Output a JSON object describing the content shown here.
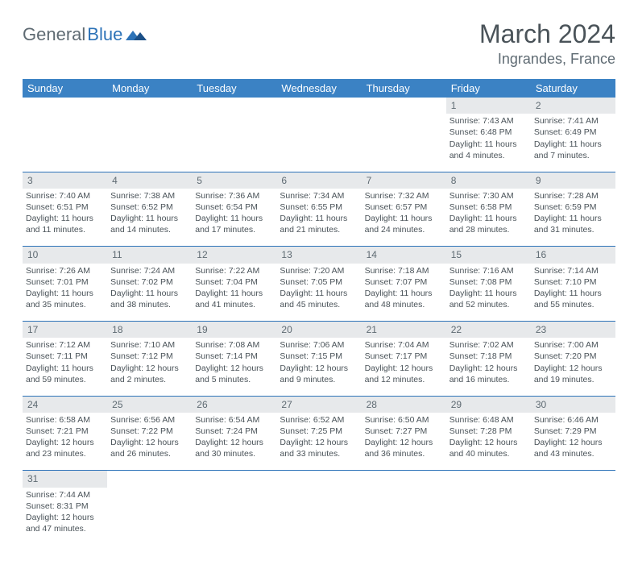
{
  "brand": {
    "part1": "General",
    "part2": "Blue"
  },
  "title": {
    "month": "March 2024",
    "location": "Ingrandes, France"
  },
  "colors": {
    "header_bg": "#3b82c4",
    "header_text": "#ffffff",
    "daynum_bg": "#e7e9eb",
    "border": "#2d73b8",
    "body_text": "#4a5359",
    "logo_gray": "#5f6b73",
    "logo_blue": "#2d73b8"
  },
  "weekdays": [
    "Sunday",
    "Monday",
    "Tuesday",
    "Wednesday",
    "Thursday",
    "Friday",
    "Saturday"
  ],
  "weeks": [
    [
      null,
      null,
      null,
      null,
      null,
      {
        "n": "1",
        "sr": "Sunrise: 7:43 AM",
        "ss": "Sunset: 6:48 PM",
        "d1": "Daylight: 11 hours",
        "d2": "and 4 minutes."
      },
      {
        "n": "2",
        "sr": "Sunrise: 7:41 AM",
        "ss": "Sunset: 6:49 PM",
        "d1": "Daylight: 11 hours",
        "d2": "and 7 minutes."
      }
    ],
    [
      {
        "n": "3",
        "sr": "Sunrise: 7:40 AM",
        "ss": "Sunset: 6:51 PM",
        "d1": "Daylight: 11 hours",
        "d2": "and 11 minutes."
      },
      {
        "n": "4",
        "sr": "Sunrise: 7:38 AM",
        "ss": "Sunset: 6:52 PM",
        "d1": "Daylight: 11 hours",
        "d2": "and 14 minutes."
      },
      {
        "n": "5",
        "sr": "Sunrise: 7:36 AM",
        "ss": "Sunset: 6:54 PM",
        "d1": "Daylight: 11 hours",
        "d2": "and 17 minutes."
      },
      {
        "n": "6",
        "sr": "Sunrise: 7:34 AM",
        "ss": "Sunset: 6:55 PM",
        "d1": "Daylight: 11 hours",
        "d2": "and 21 minutes."
      },
      {
        "n": "7",
        "sr": "Sunrise: 7:32 AM",
        "ss": "Sunset: 6:57 PM",
        "d1": "Daylight: 11 hours",
        "d2": "and 24 minutes."
      },
      {
        "n": "8",
        "sr": "Sunrise: 7:30 AM",
        "ss": "Sunset: 6:58 PM",
        "d1": "Daylight: 11 hours",
        "d2": "and 28 minutes."
      },
      {
        "n": "9",
        "sr": "Sunrise: 7:28 AM",
        "ss": "Sunset: 6:59 PM",
        "d1": "Daylight: 11 hours",
        "d2": "and 31 minutes."
      }
    ],
    [
      {
        "n": "10",
        "sr": "Sunrise: 7:26 AM",
        "ss": "Sunset: 7:01 PM",
        "d1": "Daylight: 11 hours",
        "d2": "and 35 minutes."
      },
      {
        "n": "11",
        "sr": "Sunrise: 7:24 AM",
        "ss": "Sunset: 7:02 PM",
        "d1": "Daylight: 11 hours",
        "d2": "and 38 minutes."
      },
      {
        "n": "12",
        "sr": "Sunrise: 7:22 AM",
        "ss": "Sunset: 7:04 PM",
        "d1": "Daylight: 11 hours",
        "d2": "and 41 minutes."
      },
      {
        "n": "13",
        "sr": "Sunrise: 7:20 AM",
        "ss": "Sunset: 7:05 PM",
        "d1": "Daylight: 11 hours",
        "d2": "and 45 minutes."
      },
      {
        "n": "14",
        "sr": "Sunrise: 7:18 AM",
        "ss": "Sunset: 7:07 PM",
        "d1": "Daylight: 11 hours",
        "d2": "and 48 minutes."
      },
      {
        "n": "15",
        "sr": "Sunrise: 7:16 AM",
        "ss": "Sunset: 7:08 PM",
        "d1": "Daylight: 11 hours",
        "d2": "and 52 minutes."
      },
      {
        "n": "16",
        "sr": "Sunrise: 7:14 AM",
        "ss": "Sunset: 7:10 PM",
        "d1": "Daylight: 11 hours",
        "d2": "and 55 minutes."
      }
    ],
    [
      {
        "n": "17",
        "sr": "Sunrise: 7:12 AM",
        "ss": "Sunset: 7:11 PM",
        "d1": "Daylight: 11 hours",
        "d2": "and 59 minutes."
      },
      {
        "n": "18",
        "sr": "Sunrise: 7:10 AM",
        "ss": "Sunset: 7:12 PM",
        "d1": "Daylight: 12 hours",
        "d2": "and 2 minutes."
      },
      {
        "n": "19",
        "sr": "Sunrise: 7:08 AM",
        "ss": "Sunset: 7:14 PM",
        "d1": "Daylight: 12 hours",
        "d2": "and 5 minutes."
      },
      {
        "n": "20",
        "sr": "Sunrise: 7:06 AM",
        "ss": "Sunset: 7:15 PM",
        "d1": "Daylight: 12 hours",
        "d2": "and 9 minutes."
      },
      {
        "n": "21",
        "sr": "Sunrise: 7:04 AM",
        "ss": "Sunset: 7:17 PM",
        "d1": "Daylight: 12 hours",
        "d2": "and 12 minutes."
      },
      {
        "n": "22",
        "sr": "Sunrise: 7:02 AM",
        "ss": "Sunset: 7:18 PM",
        "d1": "Daylight: 12 hours",
        "d2": "and 16 minutes."
      },
      {
        "n": "23",
        "sr": "Sunrise: 7:00 AM",
        "ss": "Sunset: 7:20 PM",
        "d1": "Daylight: 12 hours",
        "d2": "and 19 minutes."
      }
    ],
    [
      {
        "n": "24",
        "sr": "Sunrise: 6:58 AM",
        "ss": "Sunset: 7:21 PM",
        "d1": "Daylight: 12 hours",
        "d2": "and 23 minutes."
      },
      {
        "n": "25",
        "sr": "Sunrise: 6:56 AM",
        "ss": "Sunset: 7:22 PM",
        "d1": "Daylight: 12 hours",
        "d2": "and 26 minutes."
      },
      {
        "n": "26",
        "sr": "Sunrise: 6:54 AM",
        "ss": "Sunset: 7:24 PM",
        "d1": "Daylight: 12 hours",
        "d2": "and 30 minutes."
      },
      {
        "n": "27",
        "sr": "Sunrise: 6:52 AM",
        "ss": "Sunset: 7:25 PM",
        "d1": "Daylight: 12 hours",
        "d2": "and 33 minutes."
      },
      {
        "n": "28",
        "sr": "Sunrise: 6:50 AM",
        "ss": "Sunset: 7:27 PM",
        "d1": "Daylight: 12 hours",
        "d2": "and 36 minutes."
      },
      {
        "n": "29",
        "sr": "Sunrise: 6:48 AM",
        "ss": "Sunset: 7:28 PM",
        "d1": "Daylight: 12 hours",
        "d2": "and 40 minutes."
      },
      {
        "n": "30",
        "sr": "Sunrise: 6:46 AM",
        "ss": "Sunset: 7:29 PM",
        "d1": "Daylight: 12 hours",
        "d2": "and 43 minutes."
      }
    ],
    [
      {
        "n": "31",
        "sr": "Sunrise: 7:44 AM",
        "ss": "Sunset: 8:31 PM",
        "d1": "Daylight: 12 hours",
        "d2": "and 47 minutes."
      },
      null,
      null,
      null,
      null,
      null,
      null
    ]
  ]
}
